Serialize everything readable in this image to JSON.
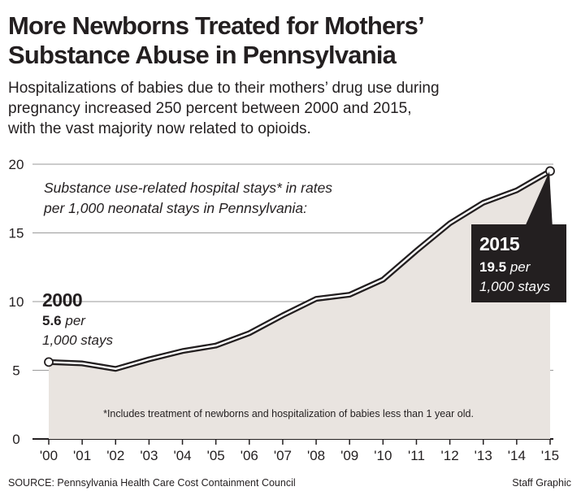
{
  "header": {
    "title_line1": "More Newborns Treated for Mothers’",
    "title_line2": "Substance Abuse in Pennsylvania",
    "subtitle_line1": "Hospitalizations of babies due to their mothers’ drug use during",
    "subtitle_line2": "pregnancy increased 250 percent between 2000 and 2015,",
    "subtitle_line3": "with the vast majority now related to opioids."
  },
  "chart_data": {
    "type": "area",
    "x": [
      "'00",
      "'01",
      "'02",
      "'03",
      "'04",
      "'05",
      "'06",
      "'07",
      "'08",
      "'09",
      "'10",
      "'11",
      "'12",
      "'13",
      "'14",
      "'15"
    ],
    "series": [
      {
        "values": [
          5.6,
          5.5,
          5.1,
          5.8,
          6.4,
          6.8,
          7.7,
          9.0,
          10.2,
          10.5,
          11.6,
          13.7,
          15.7,
          17.2,
          18.1,
          19.5
        ]
      }
    ],
    "ylim": [
      0,
      20
    ],
    "yticks": [
      "0",
      "5",
      "10",
      "15",
      "20"
    ],
    "grid": true,
    "annotation_note_line1": "Substance use-related hospital stays* in rates",
    "annotation_note_line2": "per 1,000 neonatal stays in Pennsylvania:",
    "callout_start": {
      "year": "2000",
      "value": "5.6",
      "line1_suffix": " per",
      "line2": "1,000 stays"
    },
    "callout_end": {
      "year": "2015",
      "value": "19.5",
      "line1_suffix": " per",
      "line2": "1,000 stays"
    },
    "footnote": "*Includes treatment of newborns and hospitalization of babies less than 1 year old.",
    "colors": {
      "area_fill": "#e9e4e0",
      "line": "#231f20",
      "grid": "#9a9a9a",
      "callout_box": "#231f20",
      "callout_text": "#ffffff"
    }
  },
  "footer": {
    "source": "SOURCE: Pennsylvania Health Care Cost Containment Council",
    "credit": "Staff Graphic"
  }
}
